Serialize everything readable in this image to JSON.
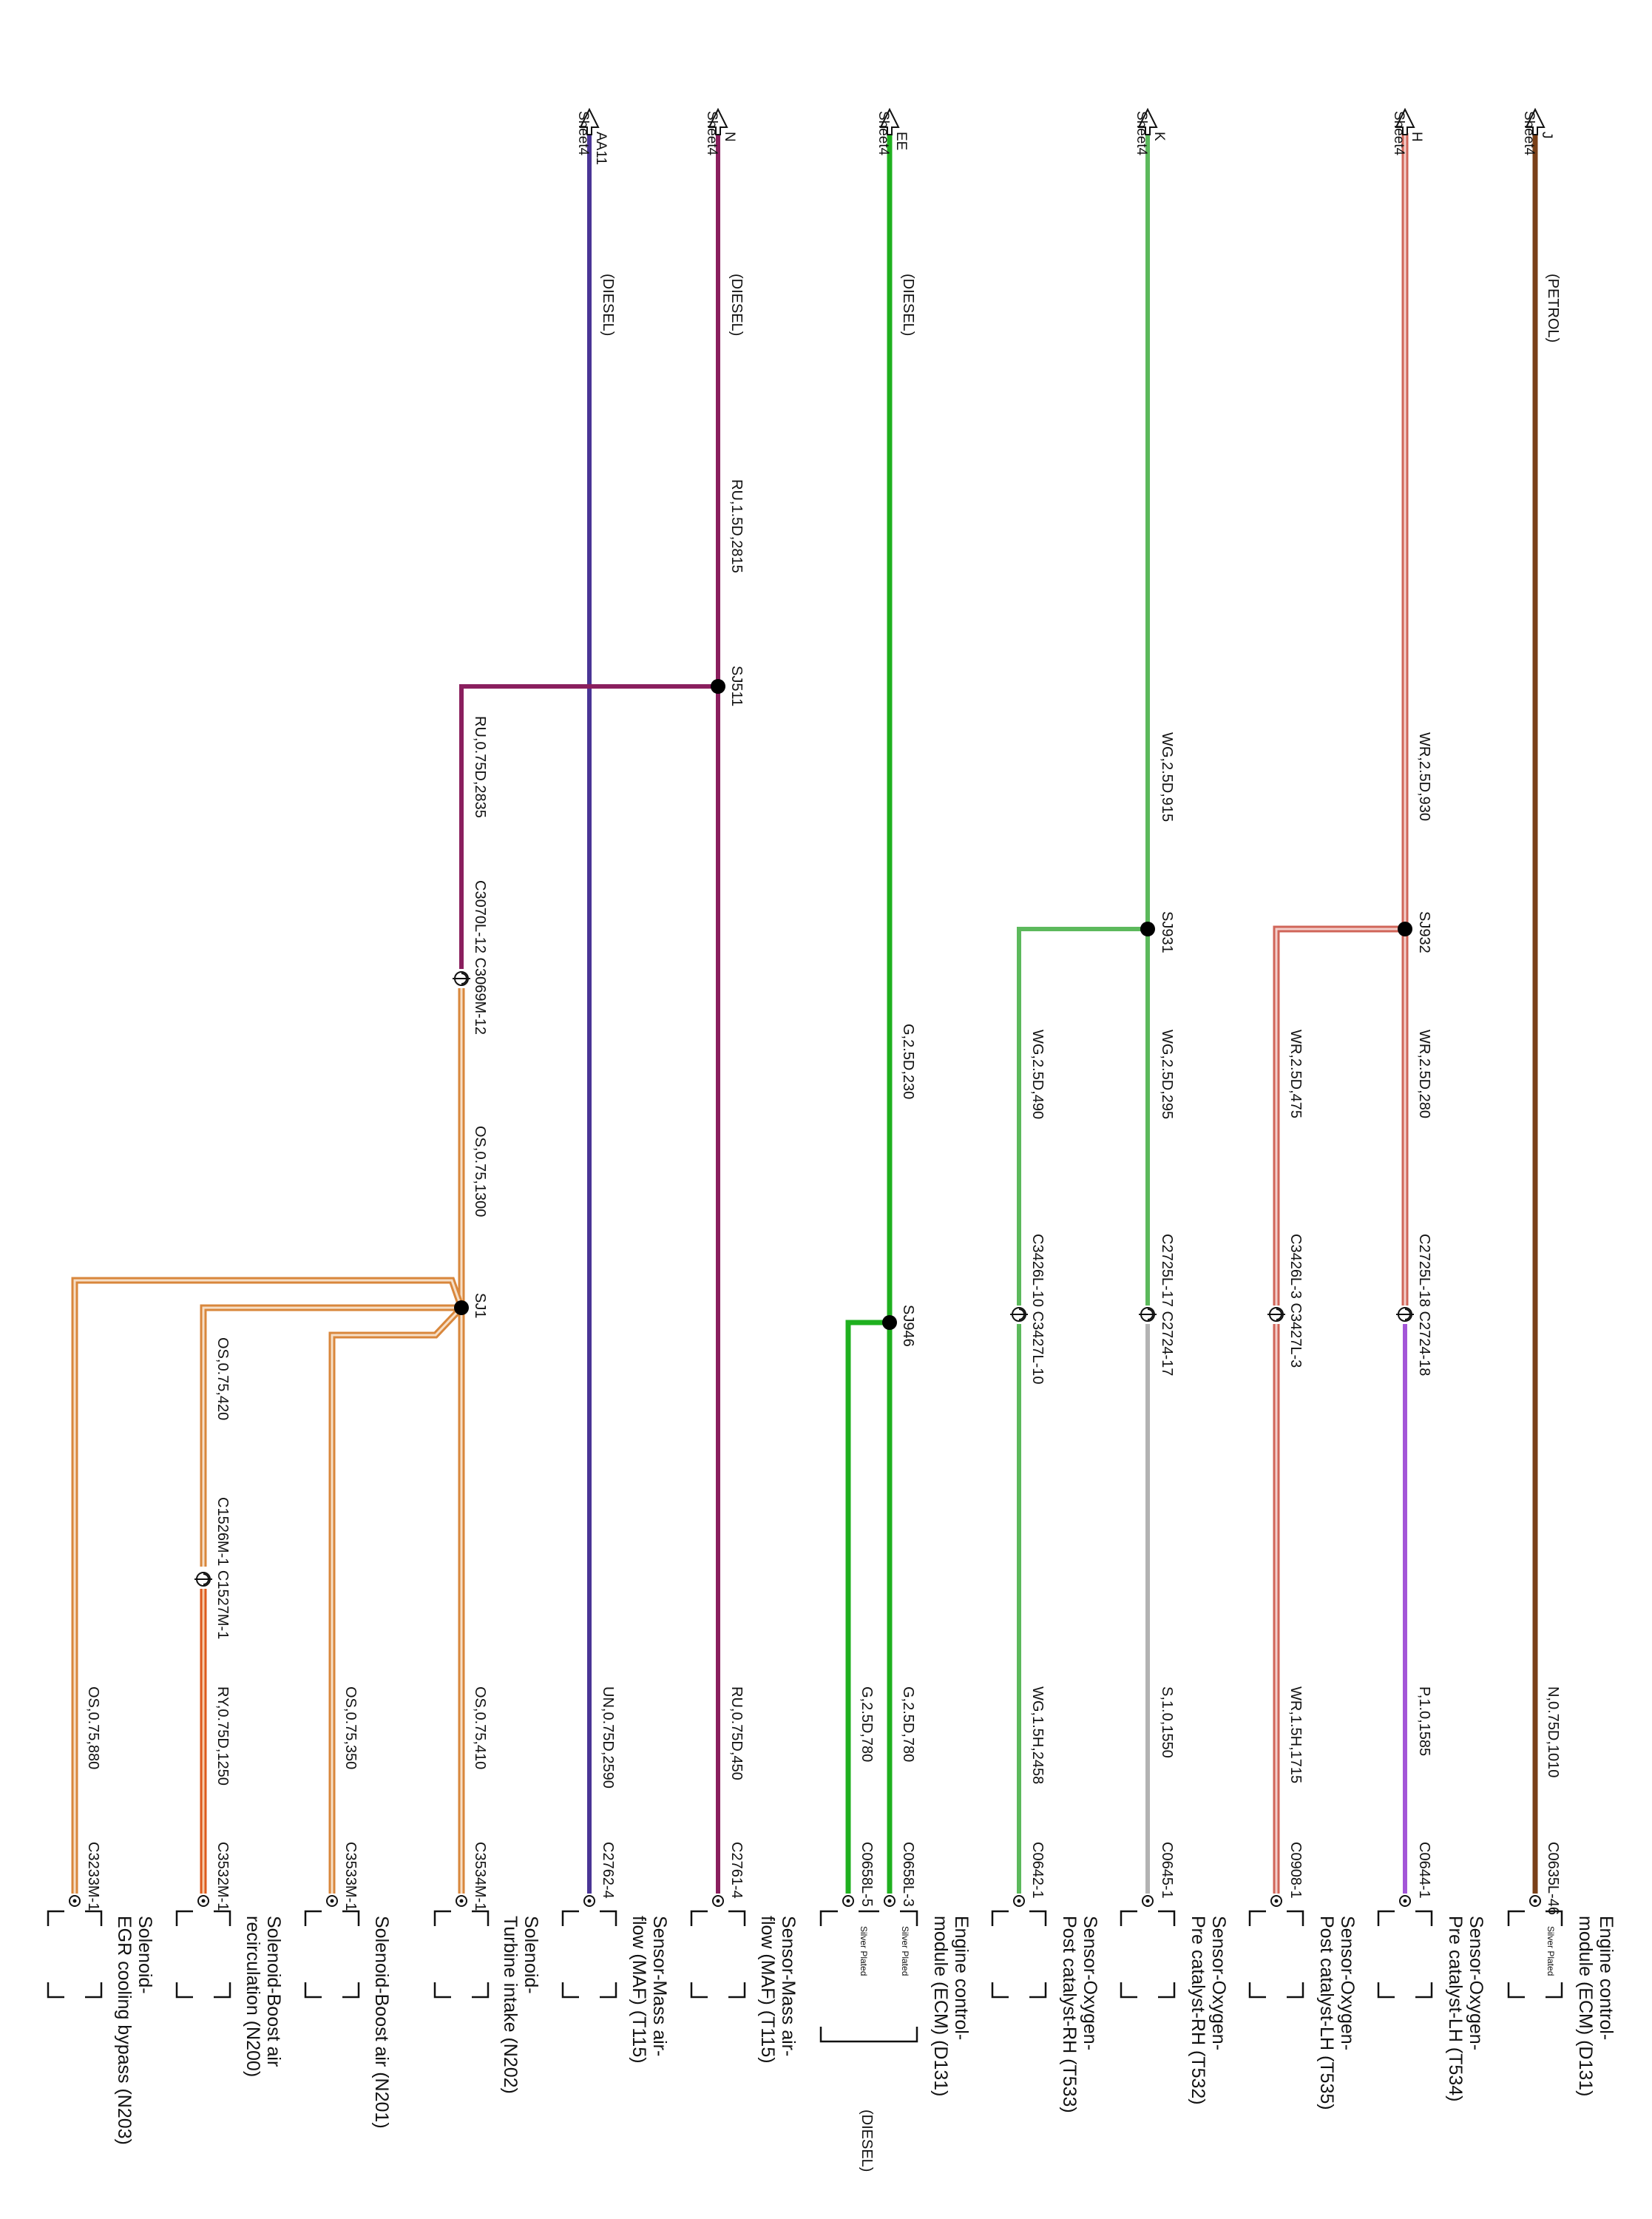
{
  "wires": [
    {
      "id": "J",
      "color": "#7a4018",
      "sheet": "Sheet4",
      "letter": "J",
      "mode": "(PETROL)",
      "spec_low": "N,0.75D,1010",
      "conn": "C0635L-46",
      "comp_l1": "Engine control-",
      "comp_l2": "module (ECM) (D131)",
      "plated": "Silver Plated"
    },
    {
      "id": "H",
      "color": "#cc5a4e",
      "sheet": "Sheet4",
      "letter": "H",
      "spec_a": "WR,2.5D,930",
      "splice": "SJ932",
      "spec_b": "WR,2.5D,280",
      "conn_mid": "C2725L-18 C2724-18",
      "spec_low": "P,1.0,1585",
      "conn": "C0644-1",
      "comp_l1": "Sensor-Oxygen-",
      "comp_l2": "Pre catalyst-LH (T534)"
    },
    {
      "id": "H2",
      "color": "#cc5a4e",
      "spec_b": "WR,2.5D,475",
      "conn_mid": "C3426L-3 C3427L-3",
      "spec_low": "WR,1.5H,1715",
      "conn": "C0908-1",
      "comp_l1": "Sensor-Oxygen-",
      "comp_l2": "Post catalyst-LH (T535)"
    },
    {
      "id": "K",
      "color": "#5cb95c",
      "sheet": "Sheet4",
      "letter": "K",
      "spec_a": "WG,2.5D,915",
      "splice": "SJ931",
      "spec_b": "WG,2.5D,295",
      "conn_mid": "C2725L-17 C2724-17",
      "spec_low": "S,1.0,1550",
      "conn": "C0645-1",
      "comp_l1": "Sensor-Oxygen-",
      "comp_l2": "Pre catalyst-RH (T532)"
    },
    {
      "id": "K2",
      "color": "#5cb95c",
      "spec_b": "WG,2.5D,490",
      "conn_mid": "C3426L-10 C3427L-10",
      "spec_low": "WG,1.5H,2458",
      "conn": "C0642-1",
      "comp_l1": "Sensor-Oxygen-",
      "comp_l2": "Post catalyst-RH (T533)"
    },
    {
      "id": "EE",
      "color": "#1fb01f",
      "sheet": "Sheet4",
      "letter": "EE",
      "mode": "(DIESEL)",
      "spec_a": "G,2.5D,230",
      "splice": "SJ946",
      "spec_low": "G,2.5D,780",
      "conn": "C0658L-3",
      "comp_l1": "Engine control-",
      "comp_l2": "module (ECM) (D131)",
      "plated": "Silver Plated"
    },
    {
      "id": "EE2",
      "color": "#1fb01f",
      "spec_low": "G,2.5D,780",
      "conn": "C0658L-5",
      "plated": "Silver Plated",
      "mode": "(DIESEL)"
    },
    {
      "id": "N",
      "color": "#8a1f5e",
      "sheet": "Sheet4",
      "letter": "N",
      "mode": "(DIESEL)",
      "spec_a": "RU,1.5D,2815",
      "splice": "SJ511",
      "spec_low": "RU,0.75D,450",
      "conn": "C2761-4",
      "comp_l1": "Sensor-Mass air-",
      "comp_l2": "flow (MAF) (T115)"
    },
    {
      "id": "AA11",
      "color": "#4a3596",
      "sheet": "Sheet4",
      "letter": "AA11",
      "mode": "(DIESEL)",
      "spec_low": "UN,0.75D,2590",
      "conn": "C2762-4",
      "comp_l1": "Sensor-Mass air-",
      "comp_l2": "flow (MAF) (T115)"
    },
    {
      "id": "OS",
      "color": "#e59a4f",
      "spec_a": "RU,0.75D,2835",
      "conn_mid": "C3070L-12 C3069M-12",
      "spec_b": "OS,0.75,1300",
      "splice": "SJ1",
      "spec_low": "OS,0.75,410",
      "conn": "C3534M-1",
      "comp_l1": "Solenoid-",
      "comp_l2": "Turbine intake (N202)"
    },
    {
      "id": "OS2",
      "color": "#e59a4f",
      "spec_low": "OS,0.75,350",
      "conn": "C3533M-1",
      "comp_l1": "Solenoid-Boost air (N201)"
    },
    {
      "id": "OS3",
      "color": "#e59a4f",
      "spec_a": "OS,0.75,420",
      "conn_mid": "C1526M-1 C1527M-1",
      "spec_low": "RY,0.75D,1250",
      "conn": "C3532M-1",
      "comp_l1": "Solenoid-Boost air",
      "comp_l2": "recirculation (N200)"
    },
    {
      "id": "OS4",
      "color": "#e59a4f",
      "spec_low": "OS,0.75,880",
      "conn": "C3233M-1",
      "comp_l1": "Solenoid-",
      "comp_l2": "EGR cooling bypass (N203)"
    }
  ],
  "colors": {
    "red_inner": "#cc5a4e",
    "orange_inner": "#e59a4f",
    "orange_red": "#dd5a1c"
  }
}
